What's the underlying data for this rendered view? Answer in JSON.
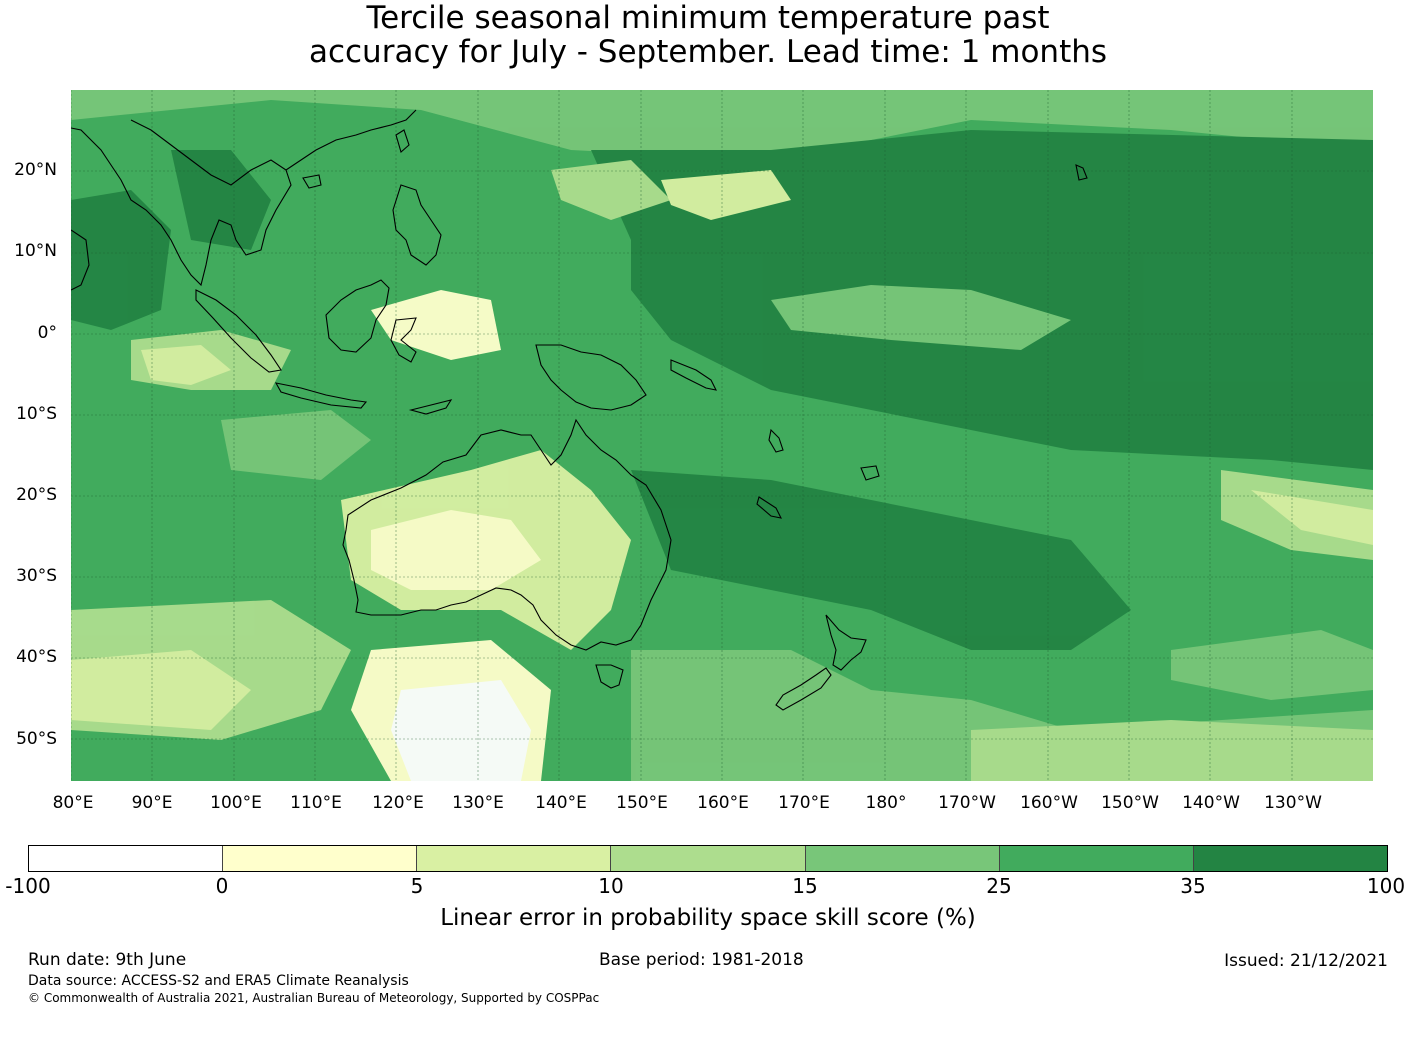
{
  "title_line1": "Tercile seasonal minimum temperature past",
  "title_line2": "accuracy for July - September. Lead time: 1 months",
  "lat_labels": [
    "20°N",
    "10°N",
    "0°",
    "10°S",
    "20°S",
    "30°S",
    "40°S",
    "50°S"
  ],
  "lon_labels": [
    "80°E",
    "90°E",
    "100°E",
    "110°E",
    "120°E",
    "130°E",
    "140°E",
    "150°E",
    "160°E",
    "170°E",
    "180°",
    "170°W",
    "160°W",
    "150°W",
    "140°W",
    "130°W"
  ],
  "colorbar": {
    "ticks": [
      "-100",
      "0",
      "5",
      "10",
      "15",
      "25",
      "35",
      "100"
    ],
    "colors": [
      "#ffffff",
      "#ffffcc",
      "#d9f0a3",
      "#addd8e",
      "#78c679",
      "#41ab5d",
      "#238443"
    ],
    "label": "Linear error in probability space skill score (%)"
  },
  "footer": {
    "run_date": "Run date: 9th June",
    "base_period": "Base period: 1981-2018",
    "issued": "Issued: 21/12/2021",
    "data_source": "Data source: ACCESS-S2 and ERA5 Climate Reanalysis",
    "copyright": "© Commonwealth of Australia 2021, Australian Bureau of Meteorology, Supported by COSPPac"
  }
}
